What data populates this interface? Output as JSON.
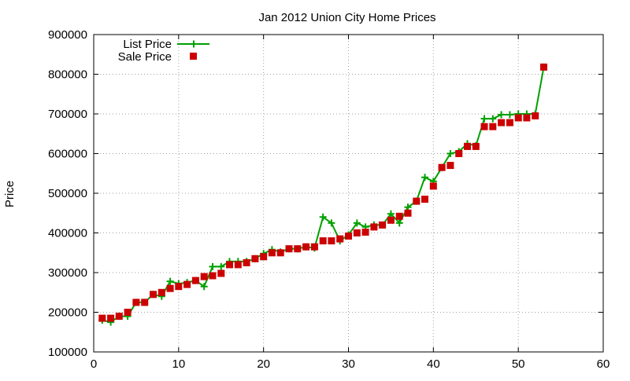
{
  "chart_data": {
    "type": "line",
    "title": "Jan 2012 Union City Home Prices",
    "xlabel": "",
    "ylabel": "Price",
    "xlim": [
      0,
      60
    ],
    "ylim": [
      100000,
      900000
    ],
    "xticks": [
      0,
      10,
      20,
      30,
      40,
      50,
      60
    ],
    "yticks": [
      100000,
      200000,
      300000,
      400000,
      500000,
      600000,
      700000,
      800000,
      900000
    ],
    "grid": true,
    "legend_position": "top-left",
    "series": [
      {
        "name": "List Price",
        "kind": "line-with-plus-markers",
        "color": "#00a000",
        "x": [
          1,
          2,
          3,
          4,
          5,
          6,
          7,
          8,
          9,
          10,
          11,
          12,
          13,
          14,
          15,
          16,
          17,
          18,
          19,
          20,
          21,
          22,
          23,
          24,
          25,
          26,
          27,
          28,
          29,
          30,
          31,
          32,
          33,
          34,
          35,
          36,
          37,
          38,
          39,
          40,
          41,
          42,
          43,
          44,
          45,
          46,
          47,
          48,
          49,
          50,
          51,
          52,
          53
        ],
        "values": [
          180000,
          175000,
          190000,
          190000,
          225000,
          225000,
          245000,
          240000,
          278000,
          272000,
          275000,
          280000,
          265000,
          315000,
          315000,
          328000,
          328000,
          328000,
          335000,
          348000,
          358000,
          352000,
          360000,
          360000,
          365000,
          362000,
          440000,
          425000,
          380000,
          395000,
          425000,
          415000,
          420000,
          420000,
          448000,
          425000,
          465000,
          480000,
          540000,
          530000,
          565000,
          600000,
          605000,
          625000,
          620000,
          688000,
          688000,
          698000,
          698000,
          700000,
          700000,
          700000,
          818000
        ]
      },
      {
        "name": "Sale Price",
        "kind": "square-markers",
        "color": "#cc0000",
        "x": [
          1,
          2,
          3,
          4,
          5,
          6,
          7,
          8,
          9,
          10,
          11,
          12,
          13,
          14,
          15,
          16,
          17,
          18,
          19,
          20,
          21,
          22,
          23,
          24,
          25,
          26,
          27,
          28,
          29,
          30,
          31,
          32,
          33,
          34,
          35,
          36,
          37,
          38,
          39,
          40,
          41,
          42,
          43,
          44,
          45,
          46,
          47,
          48,
          49,
          50,
          51,
          52,
          53
        ],
        "values": [
          185000,
          185000,
          190000,
          200000,
          225000,
          225000,
          245000,
          250000,
          260000,
          265000,
          270000,
          280000,
          290000,
          292000,
          298000,
          320000,
          320000,
          325000,
          335000,
          340000,
          350000,
          350000,
          360000,
          360000,
          365000,
          365000,
          380000,
          380000,
          385000,
          392000,
          400000,
          402000,
          415000,
          420000,
          432000,
          442000,
          450000,
          480000,
          485000,
          518000,
          565000,
          570000,
          600000,
          618000,
          618000,
          668000,
          668000,
          678000,
          678000,
          690000,
          690000,
          695000,
          818000
        ]
      }
    ]
  }
}
